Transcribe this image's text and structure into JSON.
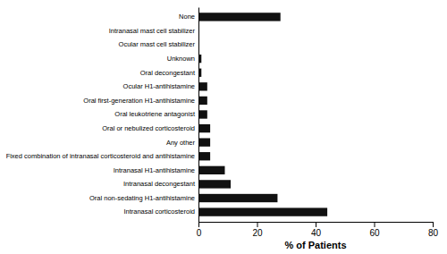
{
  "chart_data": {
    "type": "bar",
    "orientation": "horizontal",
    "categories": [
      "Intranasal corticosteroid",
      "Oral non-sedating H1-antihistamine",
      "Intranasal decongestant",
      "Intranasal H1-antihistamine",
      "Fixed combination of intranasal corticosteroid and antihistamine",
      "Any other",
      "Oral or nebulized corticosteroid",
      "Oral leukotriene antagonist",
      "Oral first-generation H1-antihistamine",
      "Ocular H1-antihistamine",
      "Oral decongestant",
      "Unknown",
      "Ocular mast cell stabilizer",
      "Intranasal mast cell stabilizer",
      "None"
    ],
    "values": [
      44,
      27,
      11,
      9,
      4,
      4,
      4,
      3,
      3,
      3,
      1,
      1,
      0.3,
      0.3,
      28
    ],
    "color": "#111111",
    "xlabel": "% of Patients",
    "xlim": [
      0,
      80
    ],
    "xticks": [
      0,
      20,
      40,
      60,
      80
    ],
    "grid": false
  }
}
